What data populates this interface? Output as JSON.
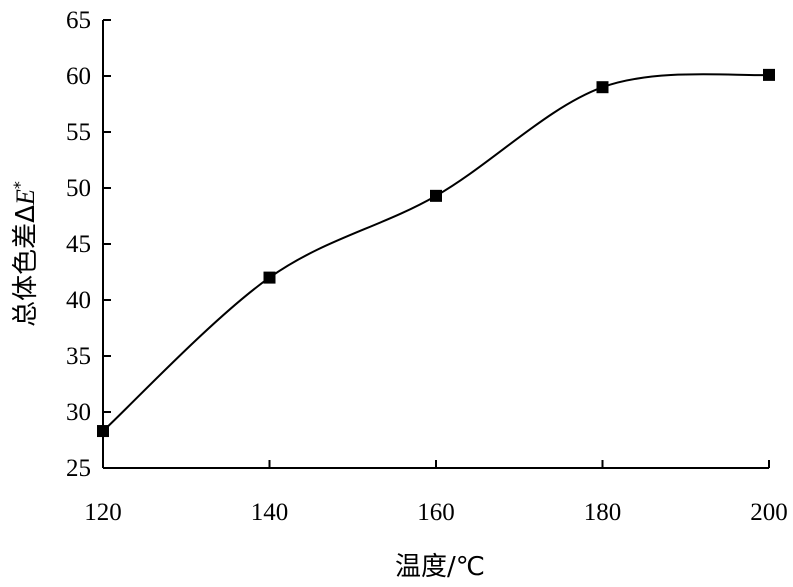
{
  "chart_data": {
    "type": "line",
    "title": "",
    "xlabel": "温度/℃",
    "ylabel": "总体色差ΔE*",
    "ylabel_parts": {
      "prefix": "总体色差Δ",
      "symbol": "E",
      "sup": "*"
    },
    "x": [
      120,
      140,
      160,
      180,
      200
    ],
    "series": [
      {
        "values": [
          28.3,
          42.0,
          49.3,
          59.0,
          60.1
        ]
      }
    ],
    "xlim": [
      120,
      200
    ],
    "ylim": [
      25,
      65
    ],
    "xticks": [
      "120",
      "140",
      "160",
      "180",
      "200"
    ],
    "yticks": [
      "25",
      "30",
      "35",
      "40",
      "45",
      "50",
      "55",
      "60",
      "65"
    ],
    "grid": false,
    "legend": "none",
    "marker": "square",
    "line_style": "smooth",
    "color": "#000000"
  }
}
